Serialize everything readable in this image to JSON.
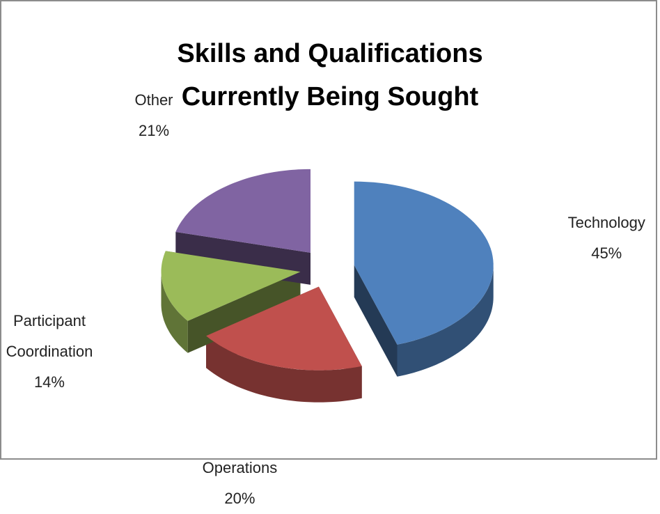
{
  "chart_data": {
    "type": "pie",
    "title": "Skills and Qualifications Currently Being Sought",
    "categories": [
      "Technology",
      "Operations",
      "Participant Coordination",
      "Other"
    ],
    "values": [
      45,
      20,
      14,
      21
    ],
    "value_labels": [
      "45%",
      "20%",
      "14%",
      "21%"
    ],
    "colors": [
      "#4f81bd",
      "#c0504d",
      "#9bbb59",
      "#8064a2"
    ]
  }
}
